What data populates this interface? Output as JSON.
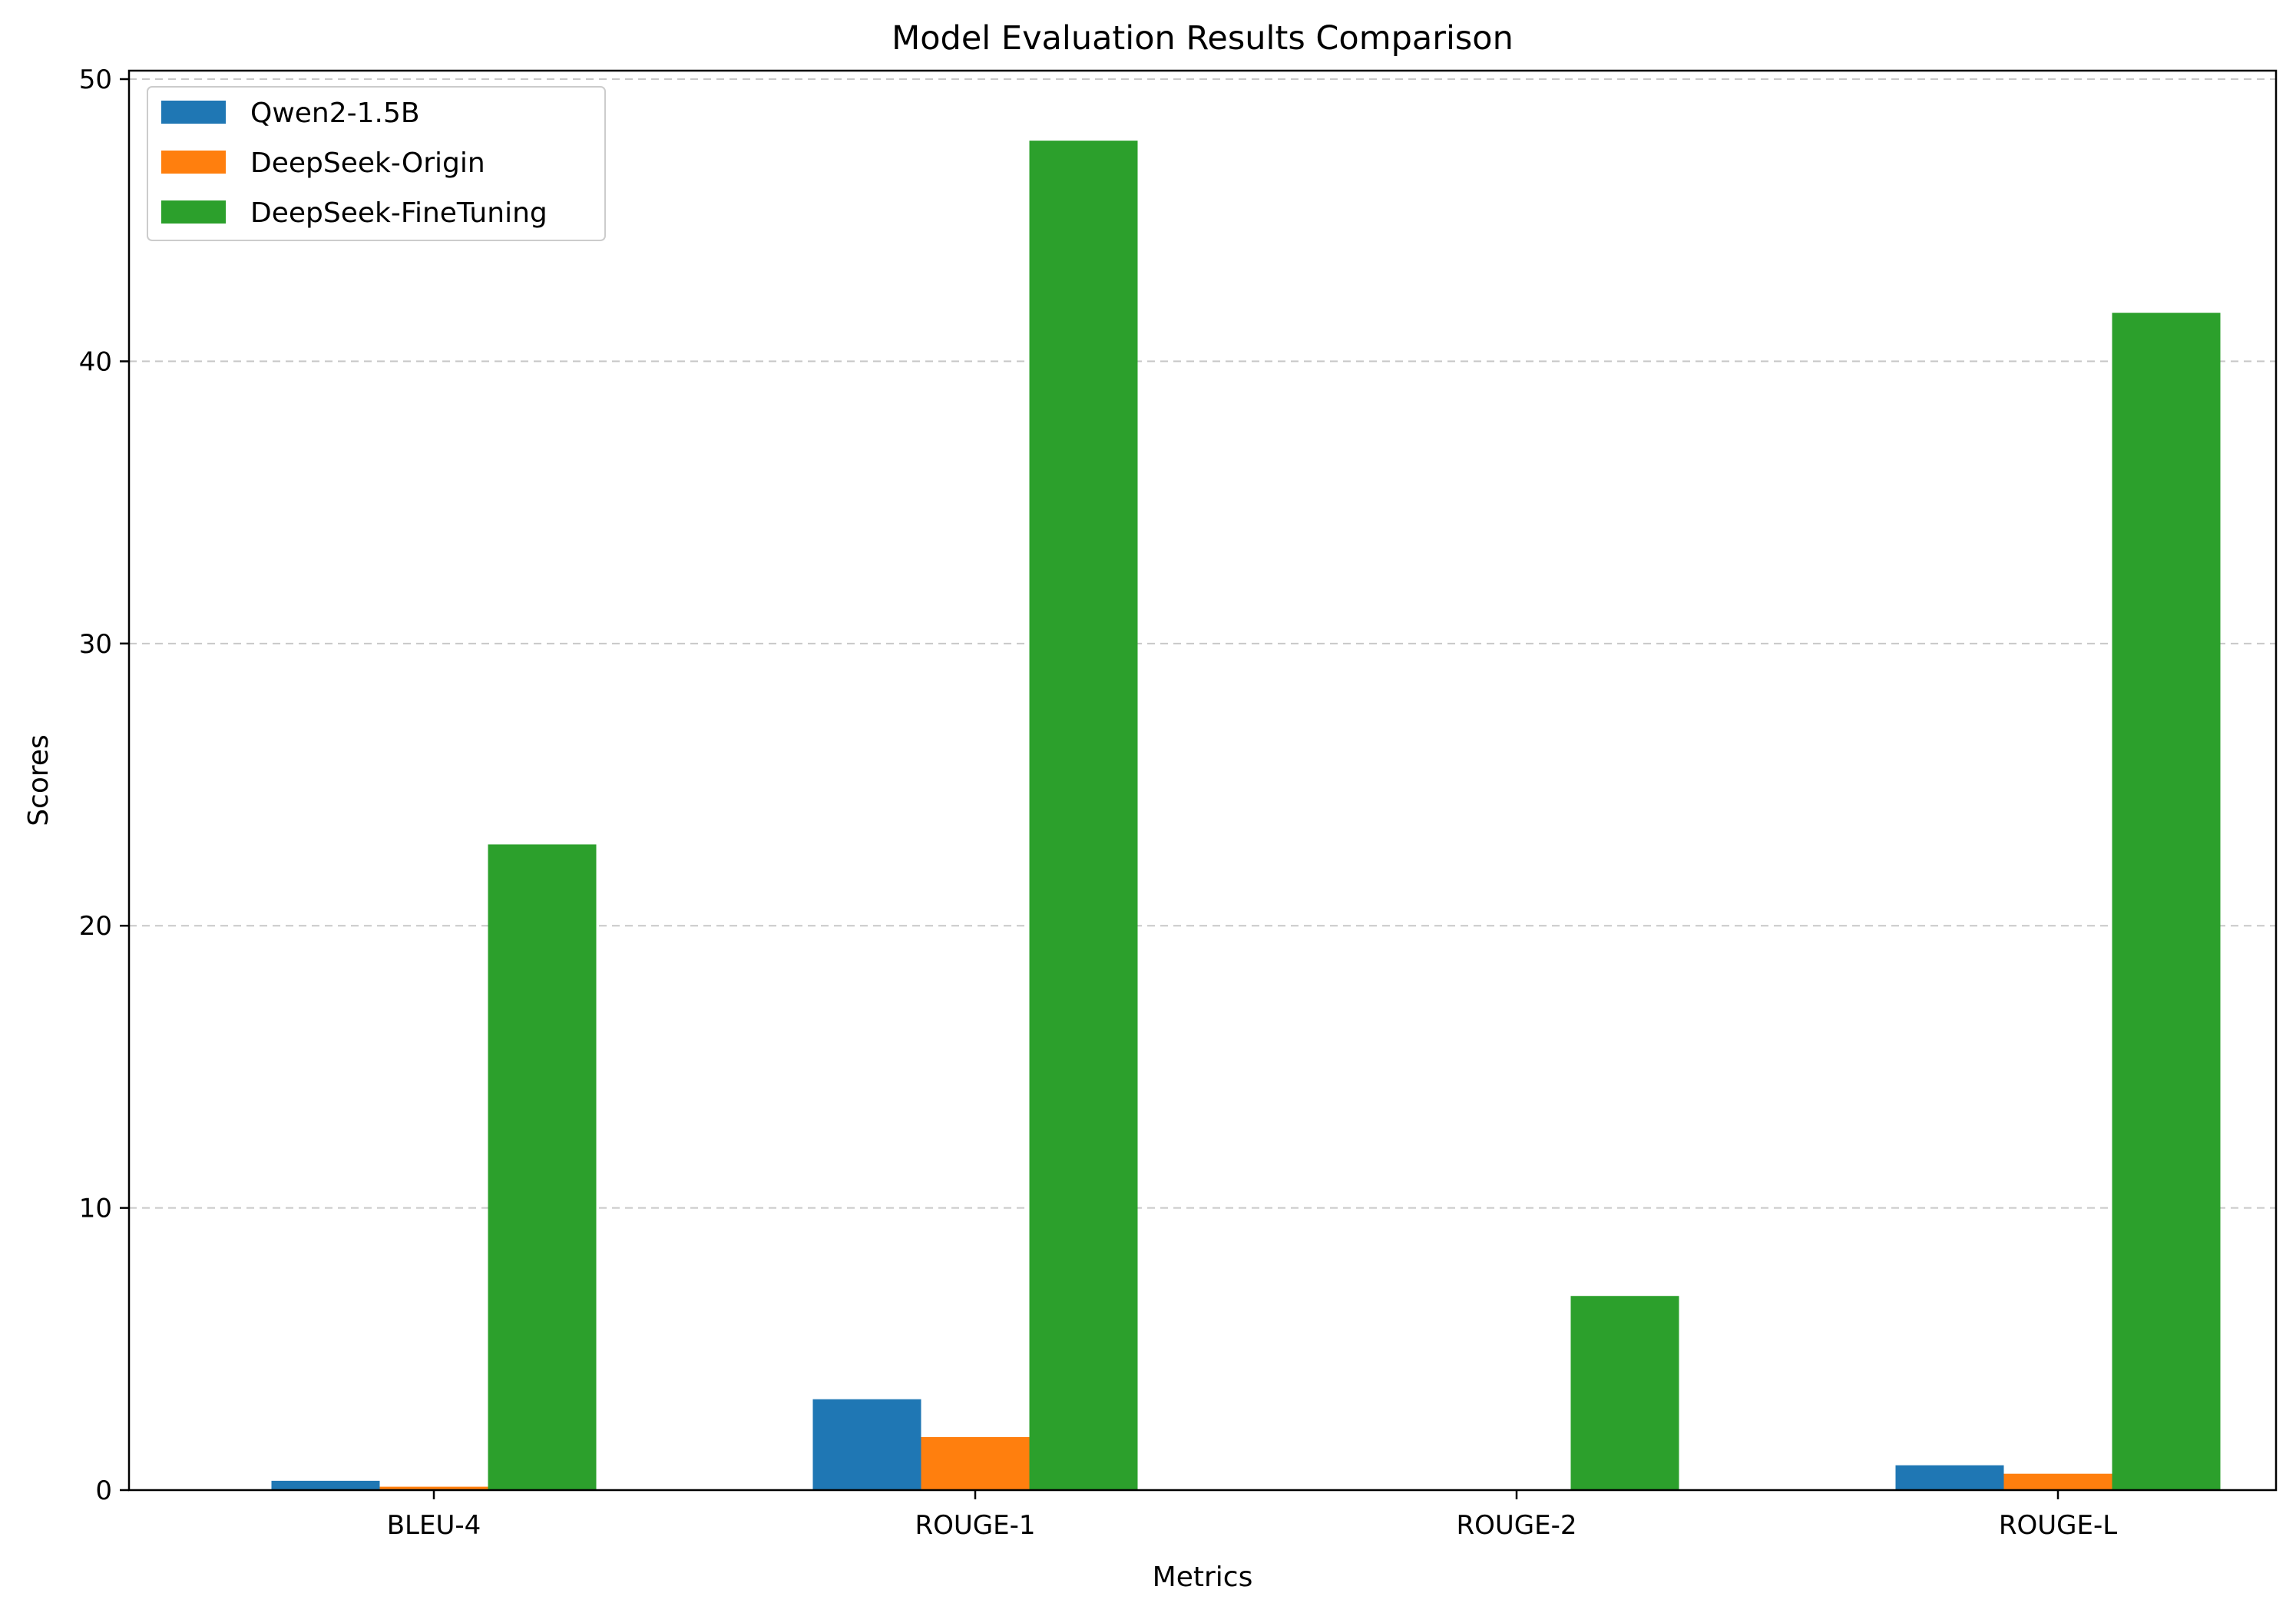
{
  "chart_data": {
    "type": "bar",
    "title": "Model Evaluation Results Comparison",
    "xlabel": "Metrics",
    "ylabel": "Scores",
    "categories": [
      "BLEU-4",
      "ROUGE-1",
      "ROUGE-2",
      "ROUGE-L"
    ],
    "ylim": [
      0,
      50.3
    ],
    "yticks": [
      0,
      10,
      20,
      30,
      40,
      50
    ],
    "grid": "y-dashed",
    "legend_position": "top-left",
    "series": [
      {
        "name": "Qwen2-1.5B",
        "color": "#1f77b4",
        "values": [
          0.33,
          3.22,
          0.0,
          0.88
        ]
      },
      {
        "name": "DeepSeek-Origin",
        "color": "#ff7f0e",
        "values": [
          0.12,
          1.88,
          0.0,
          0.58
        ]
      },
      {
        "name": "DeepSeek-FineTuning",
        "color": "#2ca02c",
        "values": [
          22.88,
          47.82,
          6.88,
          41.72
        ]
      }
    ]
  }
}
